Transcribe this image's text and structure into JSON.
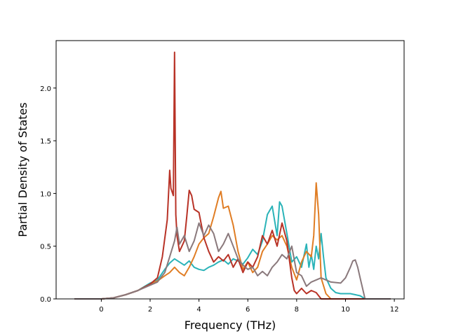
{
  "chart_data": {
    "type": "line",
    "title": "",
    "xlabel": "Frequency (THz)",
    "ylabel": "Partial Density of States",
    "xlim": [
      -1.85,
      12.4
    ],
    "ylim": [
      0.0,
      2.45
    ],
    "xticks": [
      0,
      2,
      4,
      6,
      8,
      10,
      12
    ],
    "xtick_labels": [
      "0",
      "2",
      "4",
      "6",
      "8",
      "10",
      "12"
    ],
    "yticks": [
      0.0,
      0.5,
      1.0,
      1.5,
      2.0
    ],
    "ytick_labels": [
      "0.0",
      "0.5",
      "1.0",
      "1.5",
      "2.0"
    ],
    "grid": false,
    "legend": "none",
    "series": [
      {
        "color": "#2ab3b8",
        "x": [
          -1.1,
          0.0,
          0.5,
          1.0,
          1.5,
          2.0,
          2.3,
          2.6,
          2.8,
          3.0,
          3.2,
          3.4,
          3.6,
          3.8,
          4.0,
          4.2,
          4.4,
          4.6,
          4.8,
          5.0,
          5.2,
          5.4,
          5.6,
          5.8,
          6.0,
          6.2,
          6.4,
          6.6,
          6.8,
          7.0,
          7.2,
          7.3,
          7.4,
          7.6,
          7.8,
          8.0,
          8.2,
          8.4,
          8.5,
          8.6,
          8.7,
          8.8,
          8.9,
          9.0,
          9.1,
          9.2,
          9.4,
          9.6,
          9.8,
          10.0,
          10.2,
          10.4,
          10.6,
          10.8,
          11.85
        ],
        "y": [
          0.0,
          0.0,
          0.01,
          0.04,
          0.08,
          0.15,
          0.18,
          0.28,
          0.34,
          0.38,
          0.35,
          0.32,
          0.36,
          0.3,
          0.28,
          0.27,
          0.3,
          0.32,
          0.35,
          0.37,
          0.33,
          0.38,
          0.36,
          0.33,
          0.39,
          0.47,
          0.42,
          0.55,
          0.8,
          0.88,
          0.6,
          0.92,
          0.88,
          0.62,
          0.35,
          0.4,
          0.3,
          0.52,
          0.3,
          0.42,
          0.28,
          0.5,
          0.38,
          0.62,
          0.4,
          0.2,
          0.1,
          0.06,
          0.05,
          0.05,
          0.05,
          0.04,
          0.03,
          0.0,
          0.0
        ]
      },
      {
        "color": "#e07d24",
        "x": [
          -1.1,
          0.0,
          0.5,
          1.0,
          1.5,
          2.0,
          2.3,
          2.6,
          2.8,
          3.0,
          3.2,
          3.4,
          3.6,
          3.8,
          4.0,
          4.2,
          4.4,
          4.6,
          4.8,
          4.9,
          5.0,
          5.2,
          5.4,
          5.6,
          5.8,
          6.0,
          6.2,
          6.4,
          6.6,
          6.8,
          7.0,
          7.2,
          7.4,
          7.6,
          7.8,
          8.0,
          8.2,
          8.4,
          8.6,
          8.7,
          8.8,
          8.9,
          9.0,
          9.2,
          9.4,
          11.85
        ],
        "y": [
          0.0,
          0.0,
          0.01,
          0.04,
          0.08,
          0.14,
          0.17,
          0.22,
          0.25,
          0.3,
          0.25,
          0.22,
          0.3,
          0.4,
          0.52,
          0.58,
          0.62,
          0.78,
          0.96,
          1.02,
          0.86,
          0.88,
          0.7,
          0.45,
          0.28,
          0.35,
          0.25,
          0.3,
          0.45,
          0.52,
          0.6,
          0.56,
          0.6,
          0.5,
          0.3,
          0.18,
          0.35,
          0.45,
          0.4,
          0.6,
          1.1,
          0.8,
          0.2,
          0.05,
          0.0,
          0.0
        ]
      },
      {
        "color": "#b83226",
        "x": [
          -1.1,
          0.0,
          0.5,
          1.0,
          1.5,
          2.0,
          2.3,
          2.5,
          2.7,
          2.8,
          2.85,
          2.95,
          3.0,
          3.05,
          3.1,
          3.2,
          3.3,
          3.4,
          3.5,
          3.6,
          3.7,
          3.8,
          4.0,
          4.2,
          4.4,
          4.6,
          4.8,
          5.0,
          5.2,
          5.4,
          5.6,
          5.8,
          6.0,
          6.2,
          6.4,
          6.6,
          6.8,
          7.0,
          7.2,
          7.4,
          7.6,
          7.8,
          7.9,
          8.0,
          8.2,
          8.4,
          8.6,
          8.8,
          9.0,
          9.2,
          11.85
        ],
        "y": [
          0.0,
          0.0,
          0.01,
          0.04,
          0.08,
          0.14,
          0.2,
          0.4,
          0.75,
          1.22,
          1.05,
          0.98,
          2.34,
          0.8,
          0.6,
          0.45,
          0.5,
          0.55,
          0.78,
          1.03,
          0.98,
          0.85,
          0.82,
          0.58,
          0.45,
          0.35,
          0.4,
          0.36,
          0.42,
          0.3,
          0.38,
          0.25,
          0.35,
          0.3,
          0.4,
          0.6,
          0.52,
          0.65,
          0.5,
          0.72,
          0.55,
          0.2,
          0.08,
          0.05,
          0.1,
          0.05,
          0.08,
          0.06,
          0.0,
          0.0,
          0.0
        ]
      },
      {
        "color": "#8a797c",
        "x": [
          -1.1,
          0.0,
          0.5,
          1.0,
          1.5,
          2.0,
          2.3,
          2.6,
          2.8,
          3.0,
          3.1,
          3.2,
          3.4,
          3.6,
          3.8,
          4.0,
          4.2,
          4.4,
          4.6,
          4.8,
          5.0,
          5.2,
          5.4,
          5.6,
          5.8,
          6.0,
          6.2,
          6.4,
          6.6,
          6.8,
          7.0,
          7.2,
          7.4,
          7.6,
          7.8,
          8.0,
          8.2,
          8.4,
          8.6,
          8.8,
          9.0,
          9.4,
          9.8,
          10.0,
          10.2,
          10.3,
          10.4,
          10.5,
          10.6,
          10.7,
          10.8,
          11.85
        ],
        "y": [
          0.0,
          0.0,
          0.01,
          0.04,
          0.08,
          0.13,
          0.16,
          0.25,
          0.4,
          0.55,
          0.68,
          0.52,
          0.6,
          0.45,
          0.55,
          0.72,
          0.6,
          0.7,
          0.62,
          0.45,
          0.52,
          0.62,
          0.5,
          0.38,
          0.32,
          0.28,
          0.3,
          0.22,
          0.26,
          0.22,
          0.3,
          0.35,
          0.42,
          0.38,
          0.5,
          0.25,
          0.22,
          0.12,
          0.16,
          0.18,
          0.2,
          0.16,
          0.15,
          0.2,
          0.3,
          0.36,
          0.37,
          0.3,
          0.2,
          0.1,
          0.0,
          0.0
        ]
      }
    ]
  }
}
